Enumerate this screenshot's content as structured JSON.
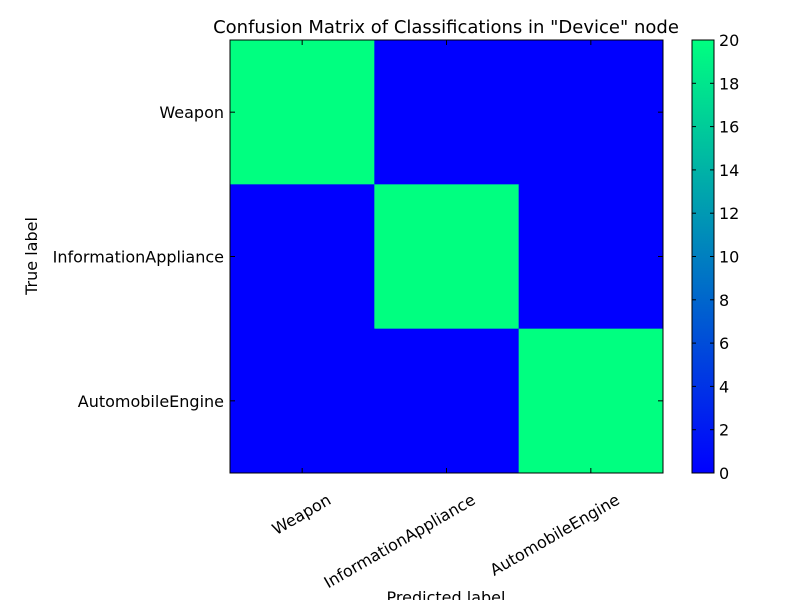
{
  "chart_data": {
    "type": "heatmap",
    "title": "Confusion Matrix of Classifications in \"Device\" node",
    "xlabel": "Predicted label",
    "ylabel": "True label",
    "x_categories": [
      "Weapon",
      "InformationAppliance",
      "AutomobileEngine"
    ],
    "y_categories": [
      "Weapon",
      "InformationAppliance",
      "AutomobileEngine"
    ],
    "matrix": [
      [
        20,
        0,
        0
      ],
      [
        0,
        20,
        0
      ],
      [
        0,
        0,
        20
      ]
    ],
    "colorbar": {
      "min": 0,
      "max": 20,
      "ticks": [
        "0",
        "2",
        "4",
        "6",
        "8",
        "10",
        "12",
        "14",
        "16",
        "18",
        "20"
      ],
      "colormap": "winter",
      "color_low": "#0000ff",
      "color_high": "#00ff80"
    },
    "grid": false,
    "legend": "colorbar-right"
  }
}
